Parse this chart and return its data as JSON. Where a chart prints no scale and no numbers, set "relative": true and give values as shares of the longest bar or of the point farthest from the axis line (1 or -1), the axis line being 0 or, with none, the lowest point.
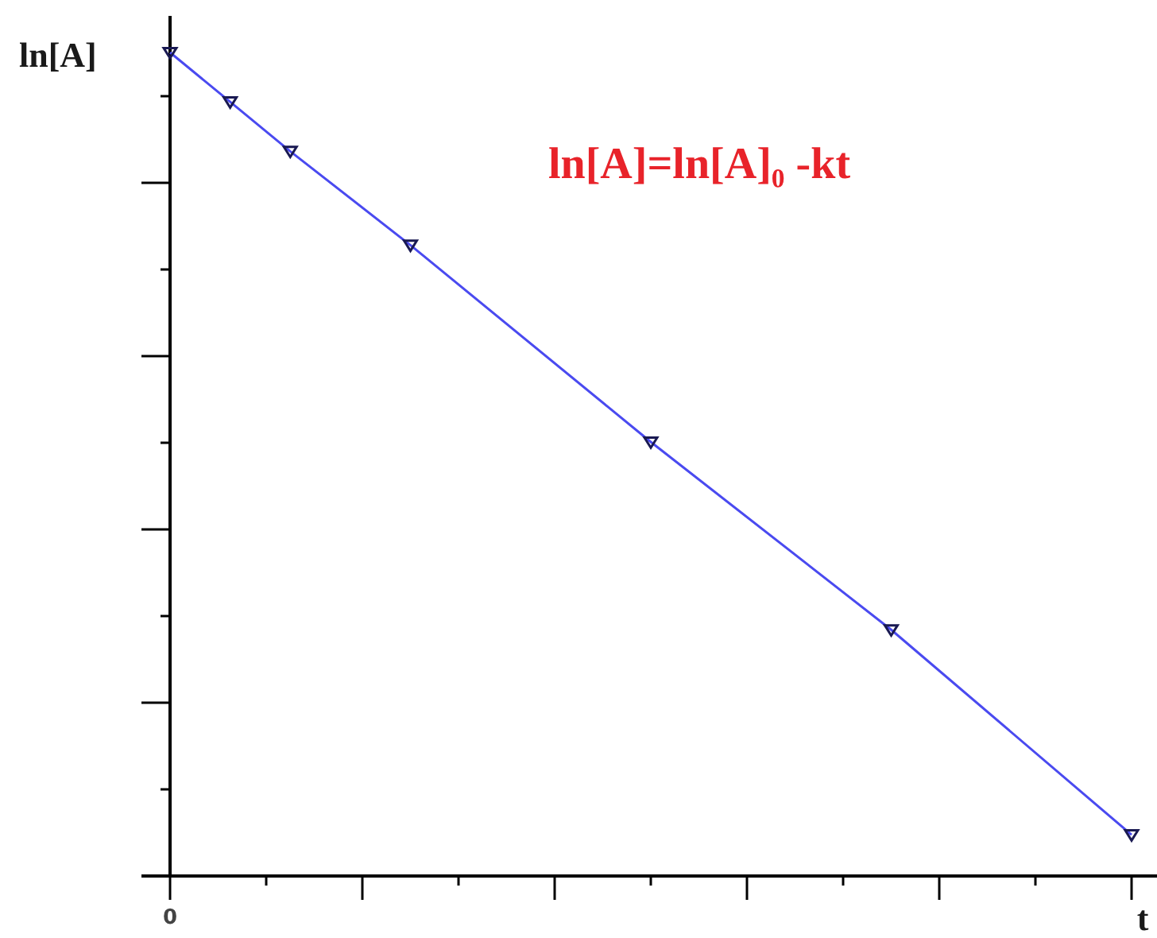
{
  "chart_data": {
    "type": "line",
    "relative": true,
    "xlabel": "t",
    "ylabel": "ln[A]",
    "annotations": [
      "ln[A]=ln[A]₀ -kt",
      {
        "text": "0"
      }
    ],
    "marker": "triangle",
    "categories": [
      null,
      null,
      null,
      null,
      null,
      null,
      null,
      null,
      null,
      null,
      null,
      null,
      null,
      null,
      null,
      null,
      null,
      null,
      null,
      null,
      null,
      null,
      null,
      null,
      null,
      null,
      null,
      null,
      null,
      null,
      null,
      null,
      null,
      null,
      null,
      null,
      null,
      null,
      null,
      null,
      null,
      null,
      null,
      null,
      null,
      null,
      null,
      null,
      null,
      null,
      null,
      null,
      null,
      null,
      null,
      null,
      null,
      null,
      null,
      null,
      null,
      null,
      null,
      null,
      null,
      null,
      null,
      null,
      null,
      null,
      null,
      null,
      null,
      null,
      null,
      null,
      null,
      null,
      null,
      null,
      null
    ],
    "series": [
      {
        "color": "#4a4af0",
        "values": [
          1,
          null,
          null,
          null,
          null,
          0.94,
          null,
          null,
          null,
          null,
          0.88,
          null,
          null,
          null,
          null,
          null,
          null,
          null,
          null,
          null,
          0.766,
          null,
          null,
          null,
          null,
          null,
          null,
          null,
          null,
          null,
          null,
          null,
          null,
          null,
          null,
          null,
          null,
          null,
          null,
          null,
          0.527,
          null,
          null,
          null,
          null,
          null,
          null,
          null,
          null,
          null,
          null,
          null,
          null,
          null,
          null,
          null,
          null,
          null,
          null,
          null,
          0.299,
          null,
          null,
          null,
          null,
          null,
          null,
          null,
          null,
          null,
          null,
          null,
          null,
          null,
          null,
          null,
          null,
          null,
          null,
          null,
          0.05
        ]
      }
    ]
  }
}
